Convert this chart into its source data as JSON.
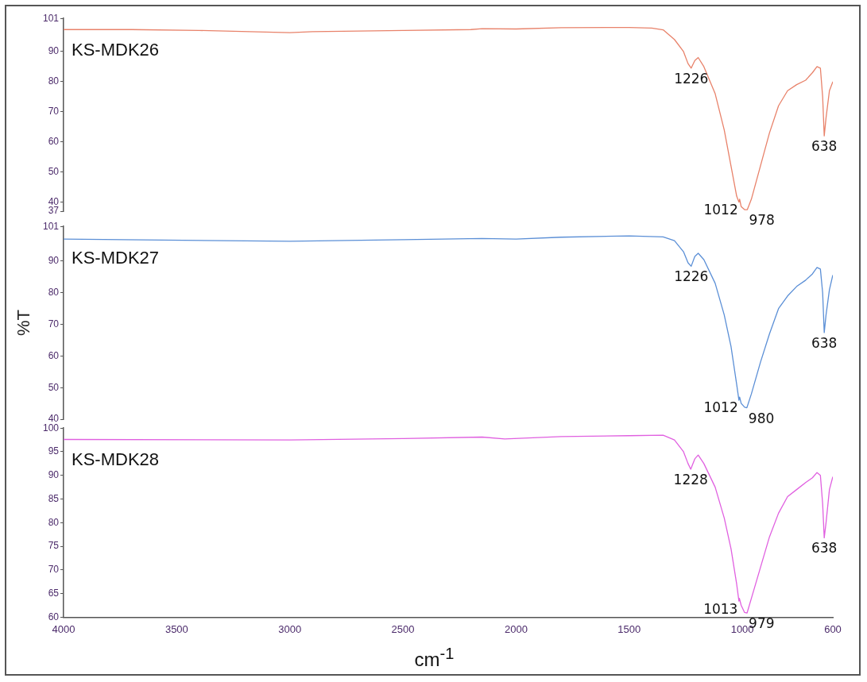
{
  "chart_data": [
    {
      "type": "line",
      "xlim": [
        4000,
        600
      ],
      "ylim": [
        37,
        101
      ],
      "yticks": [
        37,
        40,
        50,
        60,
        70,
        80,
        90,
        101
      ],
      "tick_labels": "y",
      "grid": false,
      "legend": false,
      "marker": "none",
      "line_style": "solid",
      "series": [
        {
          "name": "KS-MDK26",
          "color": "#e8826a",
          "x": [
            4000,
            3700,
            3400,
            3000,
            2900,
            2500,
            2200,
            2150,
            2000,
            1800,
            1500,
            1400,
            1350,
            1300,
            1260,
            1240,
            1226,
            1210,
            1195,
            1170,
            1120,
            1080,
            1050,
            1025,
            1015,
            1012,
            1005,
            990,
            978,
            960,
            920,
            880,
            840,
            800,
            760,
            720,
            690,
            670,
            655,
            645,
            638,
            630,
            615,
            600
          ],
          "values": [
            97.3,
            97.3,
            97,
            96.3,
            96.6,
            97,
            97.3,
            97.6,
            97.5,
            97.9,
            98,
            97.8,
            97.2,
            94,
            90,
            86,
            84.5,
            87,
            88,
            85,
            76,
            64,
            52,
            42,
            40,
            41,
            38.5,
            37.5,
            37.5,
            41,
            52,
            63,
            72,
            77,
            79,
            80.5,
            83,
            85,
            84.5,
            75,
            62,
            68,
            77,
            80
          ]
        }
      ],
      "annotations": [
        {
          "text": "1226",
          "x": 1226,
          "y": 84.5
        },
        {
          "text": "1012",
          "x": 1012,
          "y": 41
        },
        {
          "text": "978",
          "x": 978,
          "y": 37.5
        },
        {
          "text": "638",
          "x": 638,
          "y": 62
        }
      ]
    },
    {
      "type": "line",
      "xlim": [
        4000,
        600
      ],
      "ylim": [
        40,
        101
      ],
      "yticks": [
        40,
        50,
        60,
        70,
        80,
        90,
        101
      ],
      "tick_labels": "y",
      "grid": false,
      "legend": false,
      "marker": "none",
      "line_style": "solid",
      "ylabel": "%T",
      "series": [
        {
          "name": "KS-MDK27",
          "color": "#5b8fd6",
          "x": [
            4000,
            3000,
            2500,
            2150,
            2000,
            1800,
            1500,
            1350,
            1300,
            1260,
            1240,
            1226,
            1210,
            1195,
            1170,
            1120,
            1080,
            1050,
            1025,
            1015,
            1012,
            1005,
            990,
            980,
            960,
            920,
            880,
            840,
            800,
            760,
            720,
            690,
            670,
            655,
            645,
            638,
            630,
            615,
            600
          ],
          "values": [
            97,
            96.3,
            96.8,
            97.2,
            97,
            97.6,
            98,
            97.7,
            96.5,
            93,
            89.5,
            88.4,
            91.5,
            92.5,
            90.5,
            83,
            73,
            63,
            51,
            46,
            47,
            45,
            43.8,
            43.6,
            48,
            58,
            67,
            75,
            79,
            82,
            84,
            86,
            88,
            87.5,
            80,
            67.4,
            73,
            81,
            85.6
          ]
        }
      ],
      "annotations": [
        {
          "text": "1226",
          "x": 1226,
          "y": 88.4
        },
        {
          "text": "1012",
          "x": 1012,
          "y": 47
        },
        {
          "text": "980",
          "x": 980,
          "y": 43.6
        },
        {
          "text": "638",
          "x": 638,
          "y": 67.4
        }
      ]
    },
    {
      "type": "line",
      "xlim": [
        4000,
        600
      ],
      "xticks": [
        4000,
        3500,
        3000,
        2500,
        2000,
        1500,
        1000,
        600
      ],
      "ylim": [
        60,
        100
      ],
      "yticks": [
        60,
        65,
        70,
        75,
        80,
        85,
        90,
        95,
        100
      ],
      "xlabel": "cm$^{-1}$",
      "grid": false,
      "legend": false,
      "marker": "none",
      "line_style": "solid",
      "series": [
        {
          "name": "KS-MDK28",
          "color": "#e060e0",
          "x": [
            4000,
            3000,
            2500,
            2150,
            2050,
            1800,
            1500,
            1350,
            1300,
            1260,
            1240,
            1228,
            1210,
            1195,
            1170,
            1120,
            1080,
            1050,
            1025,
            1015,
            1013,
            1005,
            990,
            979,
            960,
            920,
            880,
            840,
            800,
            760,
            720,
            690,
            670,
            655,
            645,
            638,
            630,
            615,
            600
          ],
          "values": [
            97.6,
            97.5,
            97.8,
            98.1,
            97.7,
            98.2,
            98.4,
            98.5,
            97.5,
            95,
            92.5,
            91.3,
            93.5,
            94.3,
            92.5,
            87.5,
            81,
            74.5,
            67,
            63.4,
            64,
            62.5,
            61,
            60.9,
            64,
            70.5,
            77,
            82,
            85.5,
            87,
            88.5,
            89.5,
            90.6,
            90,
            84,
            76.8,
            80,
            87,
            89.7
          ]
        }
      ],
      "annotations": [
        {
          "text": "1228",
          "x": 1228,
          "y": 91.3
        },
        {
          "text": "1013",
          "x": 1013,
          "y": 64
        },
        {
          "text": "979",
          "x": 979,
          "y": 60.9
        },
        {
          "text": "638",
          "x": 638,
          "y": 76.8
        }
      ]
    }
  ]
}
